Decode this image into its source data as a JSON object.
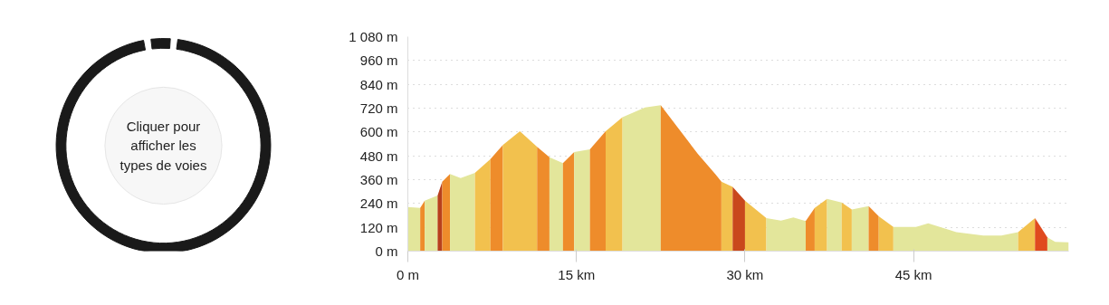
{
  "chart_data": [
    {
      "type": "donut",
      "categories": [
        null,
        null
      ],
      "values": [
        96,
        4
      ],
      "colors": [
        "#1a1a1a",
        "#1a1a1a"
      ],
      "annotations": [
        "Cliquer pour afficher les types de voies"
      ]
    },
    {
      "type": "area",
      "series": [
        {
          "color": "#e3e69b",
          "x": [
            0,
            1.1
          ],
          "values": [
            222,
            218
          ]
        },
        {
          "color": "#ee8c2b",
          "x": [
            1.1,
            1.5
          ],
          "values": [
            218,
            254
          ]
        },
        {
          "color": "#e3e69b",
          "x": [
            1.5,
            2.65
          ],
          "values": [
            254,
            280
          ]
        },
        {
          "color": "#b8401c",
          "x": [
            2.65,
            3.06
          ],
          "values": [
            280,
            350
          ]
        },
        {
          "color": "#ee8c2b",
          "x": [
            3.06,
            3.75
          ],
          "values": [
            350,
            389
          ]
        },
        {
          "color": "#e3e69b",
          "x": [
            3.75,
            4.7,
            5.97
          ],
          "values": [
            389,
            368,
            394
          ]
        },
        {
          "color": "#f2c14e",
          "x": [
            5.97,
            7.35
          ],
          "values": [
            394,
            464
          ]
        },
        {
          "color": "#ee8c2b",
          "x": [
            7.35,
            8.45
          ],
          "values": [
            464,
            534
          ]
        },
        {
          "color": "#f2c14e",
          "x": [
            8.45,
            9.97,
            11.5
          ],
          "values": [
            534,
            604,
            525
          ]
        },
        {
          "color": "#ee8c2b",
          "x": [
            11.5,
            12.6
          ],
          "values": [
            525,
            473
          ]
        },
        {
          "color": "#e3e69b",
          "x": [
            12.6,
            13.8
          ],
          "values": [
            473,
            443
          ]
        },
        {
          "color": "#ee8c2b",
          "x": [
            13.8,
            14.8
          ],
          "values": [
            443,
            499
          ]
        },
        {
          "color": "#e3e69b",
          "x": [
            14.8,
            16.2
          ],
          "values": [
            499,
            513
          ]
        },
        {
          "color": "#ee8c2b",
          "x": [
            16.2,
            17.6
          ],
          "values": [
            513,
            604
          ]
        },
        {
          "color": "#f2c14e",
          "x": [
            17.6,
            19.1
          ],
          "values": [
            604,
            674
          ]
        },
        {
          "color": "#e3e69b",
          "x": [
            19.1,
            21.1,
            22.5
          ],
          "values": [
            674,
            723,
            735
          ]
        },
        {
          "color": "#ee8c2b",
          "x": [
            22.5,
            25.8,
            27.4,
            27.9
          ],
          "values": [
            735,
            490,
            385,
            350
          ]
        },
        {
          "color": "#f2c14e",
          "x": [
            27.9,
            28.9
          ],
          "values": [
            350,
            324
          ]
        },
        {
          "color": "#c9481c",
          "x": [
            28.9,
            30
          ],
          "values": [
            324,
            254
          ]
        },
        {
          "color": "#f2c14e",
          "x": [
            30,
            31.9
          ],
          "values": [
            254,
            166
          ]
        },
        {
          "color": "#e3e69b",
          "x": [
            31.9,
            33.2,
            34.3,
            35.4
          ],
          "values": [
            166,
            154,
            170,
            152
          ]
        },
        {
          "color": "#ee8c2b",
          "x": [
            35.4,
            36.2
          ],
          "values": [
            152,
            218
          ]
        },
        {
          "color": "#f2c14e",
          "x": [
            36.2,
            37.3
          ],
          "values": [
            218,
            263
          ]
        },
        {
          "color": "#e3e69b",
          "x": [
            37.3,
            38.6
          ],
          "values": [
            263,
            245
          ]
        },
        {
          "color": "#f2c14e",
          "x": [
            38.6,
            39.5
          ],
          "values": [
            245,
            210
          ]
        },
        {
          "color": "#e3e69b",
          "x": [
            39.5,
            41.0
          ],
          "values": [
            210,
            227
          ]
        },
        {
          "color": "#ee8c2b",
          "x": [
            41.0,
            41.9
          ],
          "values": [
            227,
            175
          ]
        },
        {
          "color": "#f2c14e",
          "x": [
            41.9,
            43.2
          ],
          "values": [
            175,
            122
          ]
        },
        {
          "color": "#e3e69b",
          "x": [
            43.2,
            45.2,
            46.3,
            48.8,
            51.2,
            52.8,
            54.3
          ],
          "values": [
            122,
            122,
            140,
            96,
            79,
            79,
            96
          ]
        },
        {
          "color": "#f2c14e",
          "x": [
            54.3,
            55.8
          ],
          "values": [
            96,
            166
          ]
        },
        {
          "color": "#e04a1e",
          "x": [
            55.8,
            56.9
          ],
          "values": [
            166,
            70
          ]
        },
        {
          "color": "#e3e69b",
          "x": [
            56.9,
            57.6,
            58.8
          ],
          "values": [
            70,
            47,
            44
          ]
        }
      ],
      "xlim": [
        0,
        58.8
      ],
      "ylim": [
        0,
        1080
      ],
      "xticks": [
        {
          "value": 0,
          "label": "0 m"
        },
        {
          "value": 15,
          "label": "15 km"
        },
        {
          "value": 30,
          "label": "30 km"
        },
        {
          "value": 45,
          "label": "45 km"
        }
      ],
      "yticks": [
        {
          "value": 0,
          "label": "0 m"
        },
        {
          "value": 120,
          "label": "120 m"
        },
        {
          "value": 240,
          "label": "240 m"
        },
        {
          "value": 360,
          "label": "360 m"
        },
        {
          "value": 480,
          "label": "480 m"
        },
        {
          "value": 600,
          "label": "600 m"
        },
        {
          "value": 720,
          "label": "720 m"
        },
        {
          "value": 840,
          "label": "840 m"
        },
        {
          "value": 960,
          "label": "960 m"
        },
        {
          "value": 1080,
          "label": "1 080 m"
        }
      ],
      "grid": "y"
    }
  ]
}
